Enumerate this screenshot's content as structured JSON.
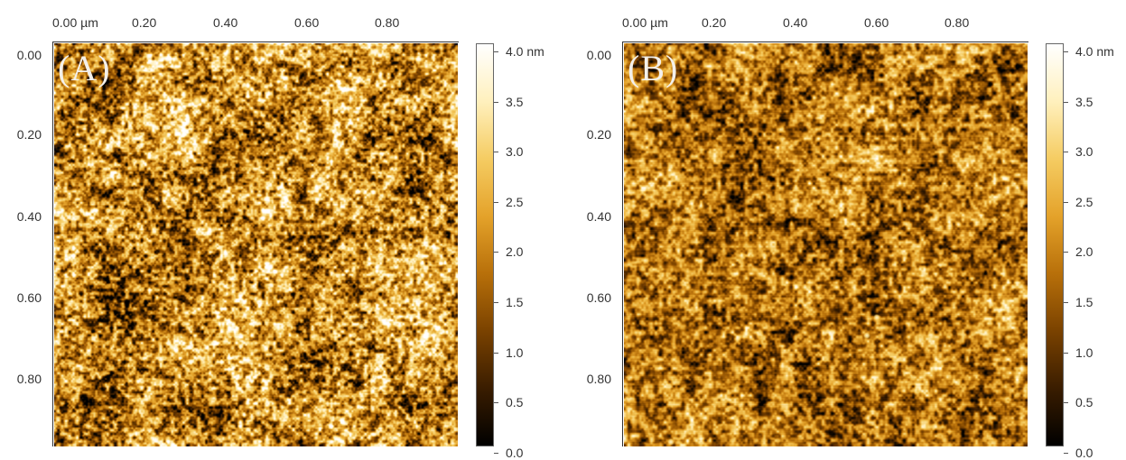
{
  "panels": [
    {
      "label": "(A)",
      "x_ticks": [
        "0.00 µm",
        "0.20",
        "0.40",
        "0.60",
        "0.80"
      ],
      "y_ticks": [
        "0.00",
        "0.20",
        "0.40",
        "0.60",
        "0.80"
      ],
      "colorbar_ticks": [
        "4.0 nm",
        "3.5",
        "3.0",
        "2.5",
        "2.0",
        "1.5",
        "1.0",
        "0.5",
        "0.0"
      ]
    },
    {
      "label": "(B)",
      "x_ticks": [
        "0.00 µm",
        "0.20",
        "0.40",
        "0.60",
        "0.80"
      ],
      "y_ticks": [
        "0.00",
        "0.20",
        "0.40",
        "0.60",
        "0.80"
      ],
      "colorbar_ticks": [
        "4.0 nm",
        "3.5",
        "3.0",
        "2.5",
        "2.0",
        "1.5",
        "1.0",
        "0.5",
        "0.0"
      ]
    }
  ],
  "colors": {
    "colormap": [
      "#000000",
      "#3a1d00",
      "#7a4200",
      "#b8700a",
      "#e4a22a",
      "#f5cc62",
      "#fff0bd",
      "#ffffff"
    ]
  }
}
